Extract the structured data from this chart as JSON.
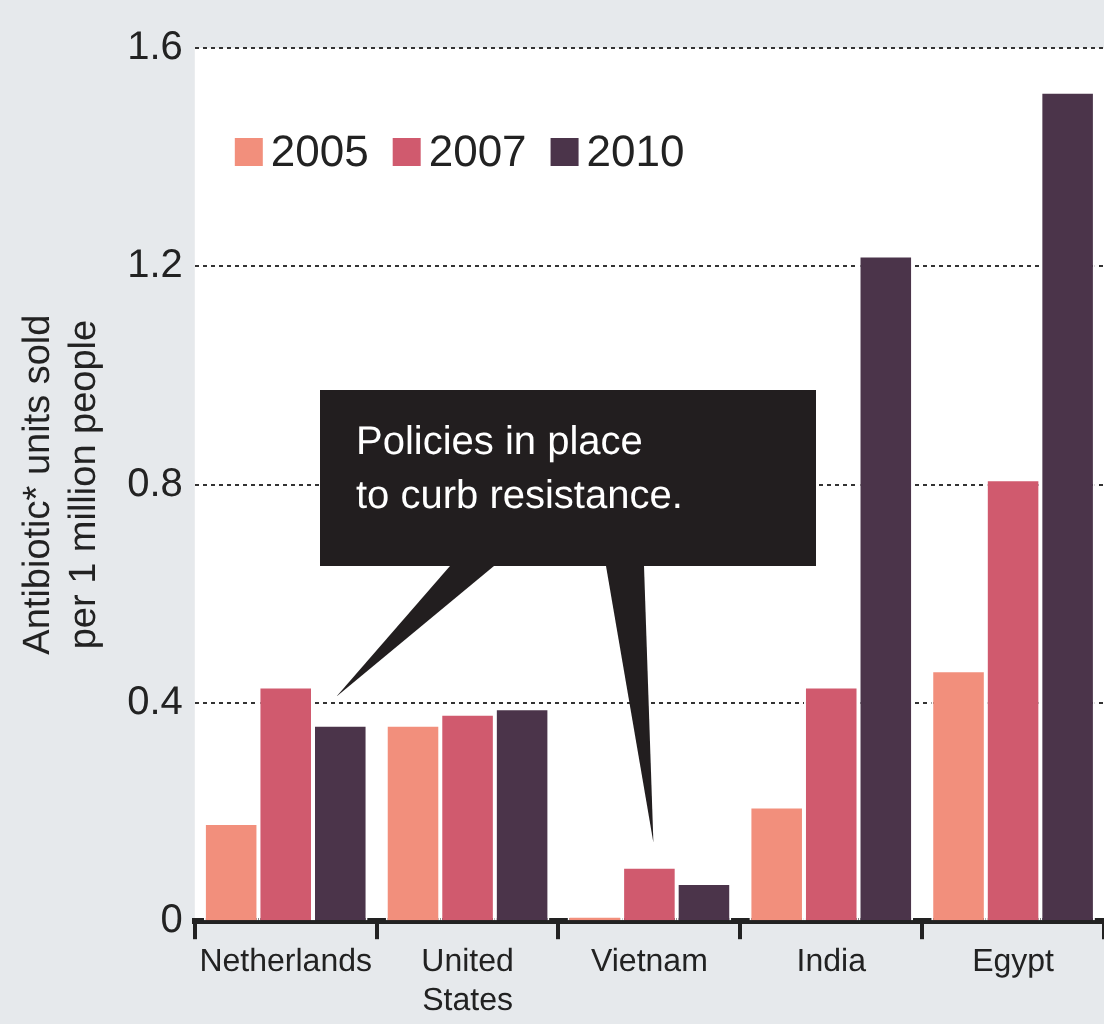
{
  "chart_data": {
    "type": "bar",
    "ylabel": "Antibiotic* units sold\nper 1 million people",
    "categories": [
      "Netherlands",
      "United States",
      "Vietnam",
      "India",
      "Egypt"
    ],
    "series": [
      {
        "name": "2005",
        "color": "#f28f7c",
        "values": [
          0.18,
          0.36,
          0.01,
          0.21,
          0.46
        ]
      },
      {
        "name": "2007",
        "color": "#d05a6e",
        "values": [
          0.43,
          0.38,
          0.1,
          0.43,
          0.81
        ]
      },
      {
        "name": "2010",
        "color": "#4b344a",
        "values": [
          0.36,
          0.39,
          0.07,
          1.22,
          1.52
        ]
      }
    ],
    "ylim": [
      0,
      1.6
    ],
    "yticks": [
      0,
      0.4,
      0.8,
      1.2,
      1.6
    ],
    "grid": "y",
    "legend": "top left",
    "annotations": [
      "Policies in place\nto curb resistance."
    ]
  }
}
